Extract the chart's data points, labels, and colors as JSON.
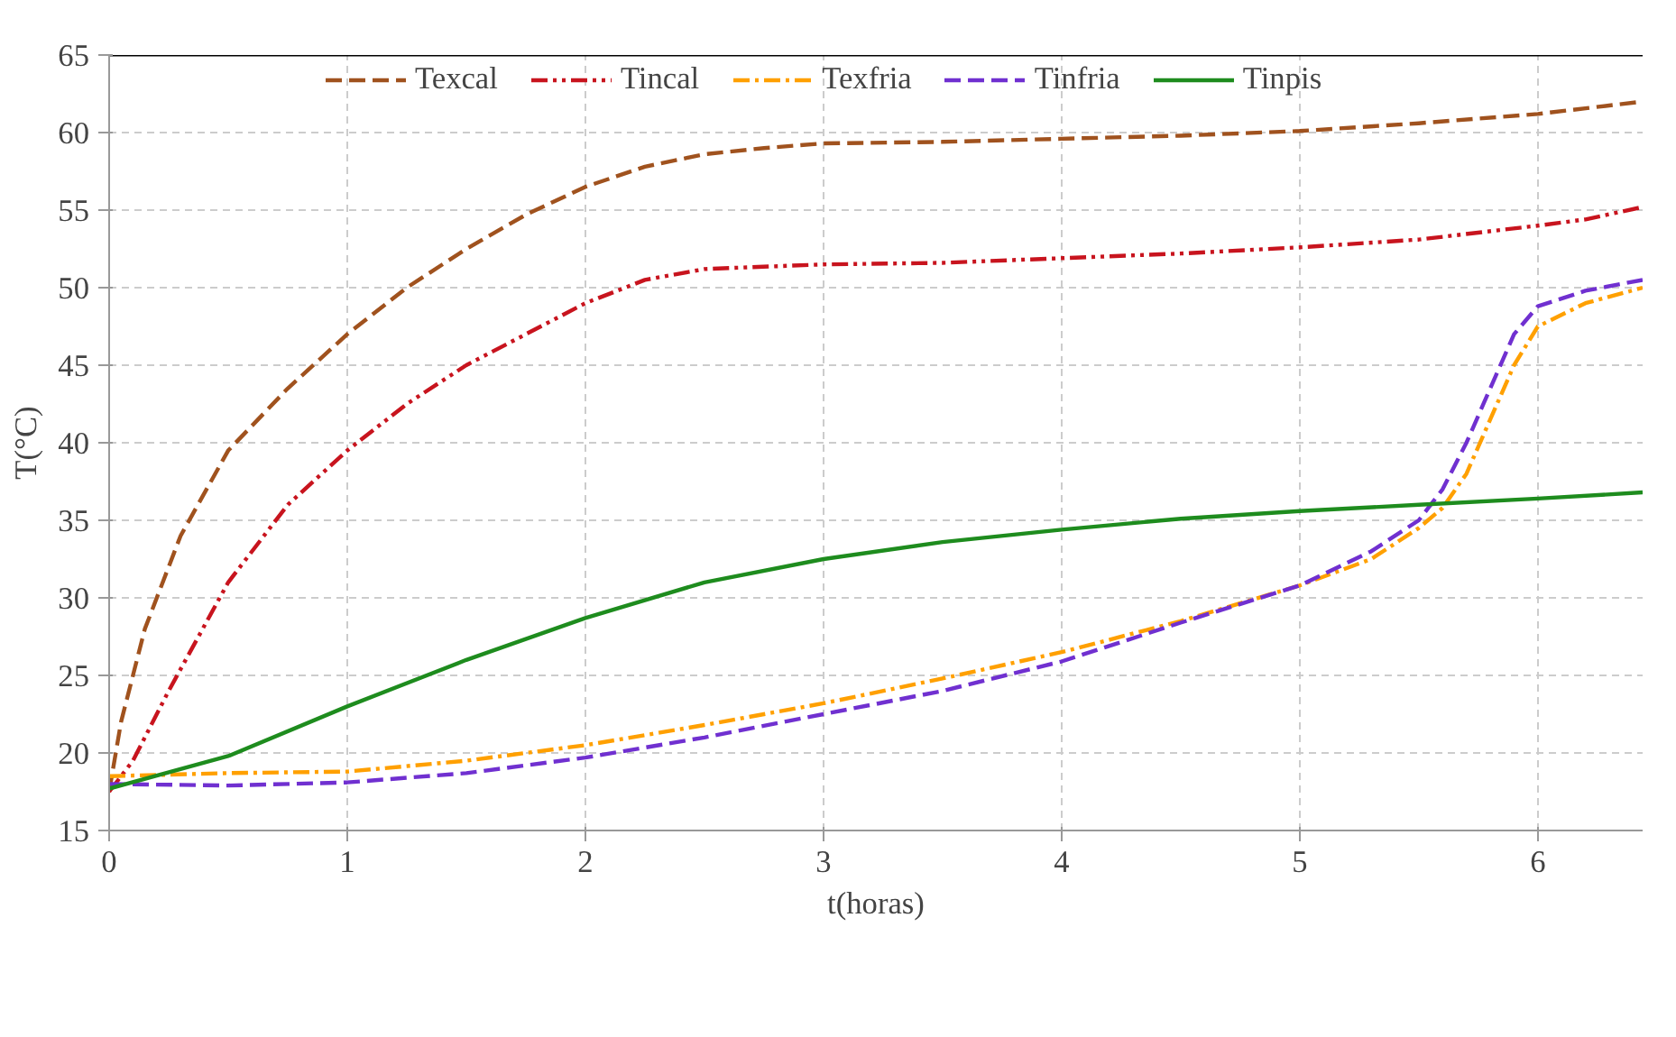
{
  "chart_data": {
    "type": "line",
    "xlabel": "t(horas)",
    "ylabel": "T(°C)",
    "xlim": [
      0,
      6.44
    ],
    "ylim": [
      15,
      65
    ],
    "xticks": [
      0,
      1,
      2,
      3,
      4,
      5,
      6
    ],
    "yticks": [
      15,
      20,
      25,
      30,
      35,
      40,
      45,
      50,
      55,
      60,
      65
    ],
    "grid": true,
    "legend": "top",
    "marker": "none",
    "series": [
      {
        "name": "Texcal",
        "color": "#a0521e",
        "line_style": "dashed",
        "x": [
          0,
          0.05,
          0.15,
          0.3,
          0.5,
          0.75,
          1,
          1.25,
          1.5,
          1.75,
          2,
          2.25,
          2.5,
          2.75,
          3,
          3.5,
          4,
          4.5,
          5,
          5.5,
          6,
          6.44
        ],
        "values": [
          17.5,
          22,
          28,
          34,
          39.5,
          43.5,
          47,
          50,
          52.5,
          54.7,
          56.5,
          57.8,
          58.6,
          59,
          59.3,
          59.4,
          59.6,
          59.8,
          60.1,
          60.6,
          61.2,
          62
        ]
      },
      {
        "name": "Tincal",
        "color": "#c8141e",
        "line_style": "dashdotdot",
        "x": [
          0,
          0.1,
          0.25,
          0.5,
          0.75,
          1,
          1.25,
          1.5,
          1.75,
          2,
          2.25,
          2.5,
          3,
          3.5,
          4,
          4.5,
          5,
          5.5,
          6,
          6.2,
          6.44
        ],
        "values": [
          17.5,
          19.5,
          24,
          31,
          36,
          39.5,
          42.5,
          45,
          47,
          49,
          50.5,
          51.2,
          51.5,
          51.6,
          51.9,
          52.2,
          52.6,
          53.1,
          54,
          54.4,
          55.2
        ]
      },
      {
        "name": "Texfria",
        "color": "#ffa000",
        "line_style": "dashdot",
        "x": [
          0,
          0.5,
          1,
          1.5,
          2,
          2.5,
          3,
          3.5,
          4,
          4.5,
          5,
          5.3,
          5.5,
          5.6,
          5.7,
          5.8,
          5.9,
          6,
          6.2,
          6.44
        ],
        "values": [
          18.5,
          18.7,
          18.8,
          19.5,
          20.5,
          21.8,
          23.2,
          24.8,
          26.5,
          28.5,
          30.8,
          32.5,
          34.5,
          35.8,
          38,
          41.5,
          45,
          47.5,
          49,
          50
        ]
      },
      {
        "name": "Tinfria",
        "color": "#7030d0",
        "line_style": "dashed",
        "x": [
          0,
          0.5,
          1,
          1.5,
          2,
          2.5,
          3,
          3.5,
          4,
          4.5,
          5,
          5.3,
          5.5,
          5.6,
          5.7,
          5.8,
          5.9,
          6,
          6.2,
          6.44
        ],
        "values": [
          18,
          17.9,
          18.1,
          18.7,
          19.7,
          21,
          22.5,
          24,
          25.9,
          28.4,
          30.8,
          33,
          35,
          37,
          40,
          43.5,
          47,
          48.8,
          49.8,
          50.5
        ]
      },
      {
        "name": "Tinpis",
        "color": "#1e8c1e",
        "line_style": "solid",
        "x": [
          0,
          0.5,
          1,
          1.5,
          2,
          2.5,
          3,
          3.5,
          4,
          4.5,
          5,
          5.5,
          6,
          6.44
        ],
        "values": [
          17.7,
          19.8,
          23,
          26,
          28.7,
          31,
          32.5,
          33.6,
          34.4,
          35.1,
          35.6,
          36,
          36.4,
          36.8
        ]
      }
    ]
  }
}
